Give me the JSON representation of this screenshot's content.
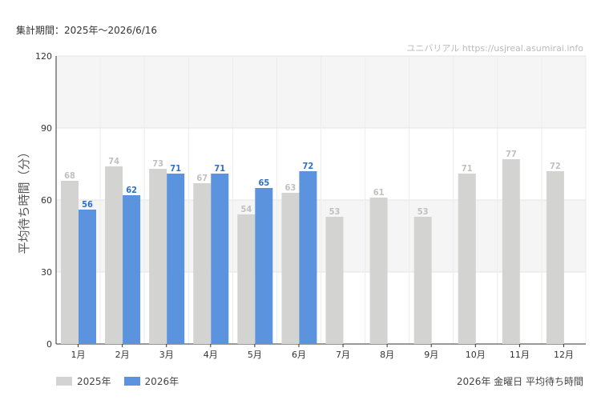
{
  "header": {
    "period": "集計期間：2025年～2026/6/16",
    "watermark": "ユニバリアル  https://usjreal.asumirai.info"
  },
  "footer": {
    "subtitle": "2026年 金曜日 平均待ち時間"
  },
  "chart_data": {
    "type": "bar",
    "categories": [
      "1月",
      "2月",
      "3月",
      "4月",
      "5月",
      "6月",
      "7月",
      "8月",
      "9月",
      "10月",
      "11月",
      "12月"
    ],
    "series": [
      {
        "name": "2025年",
        "color": "#d3d3d1",
        "label_color": "#c0c0c0",
        "values": [
          68,
          74,
          73,
          67,
          54,
          63,
          53,
          61,
          53,
          71,
          77,
          72
        ]
      },
      {
        "name": "2026年",
        "color": "#5b93df",
        "label_color": "#2e6fc9",
        "values": [
          56,
          62,
          71,
          71,
          65,
          72,
          null,
          null,
          null,
          null,
          null,
          null
        ]
      }
    ],
    "xlabel": "",
    "ylabel": "平均待ち時間（分）",
    "ylim": [
      0,
      120
    ],
    "yticks": [
      0,
      30,
      60,
      90,
      120
    ],
    "grid": true,
    "legend": "bottom-left"
  }
}
